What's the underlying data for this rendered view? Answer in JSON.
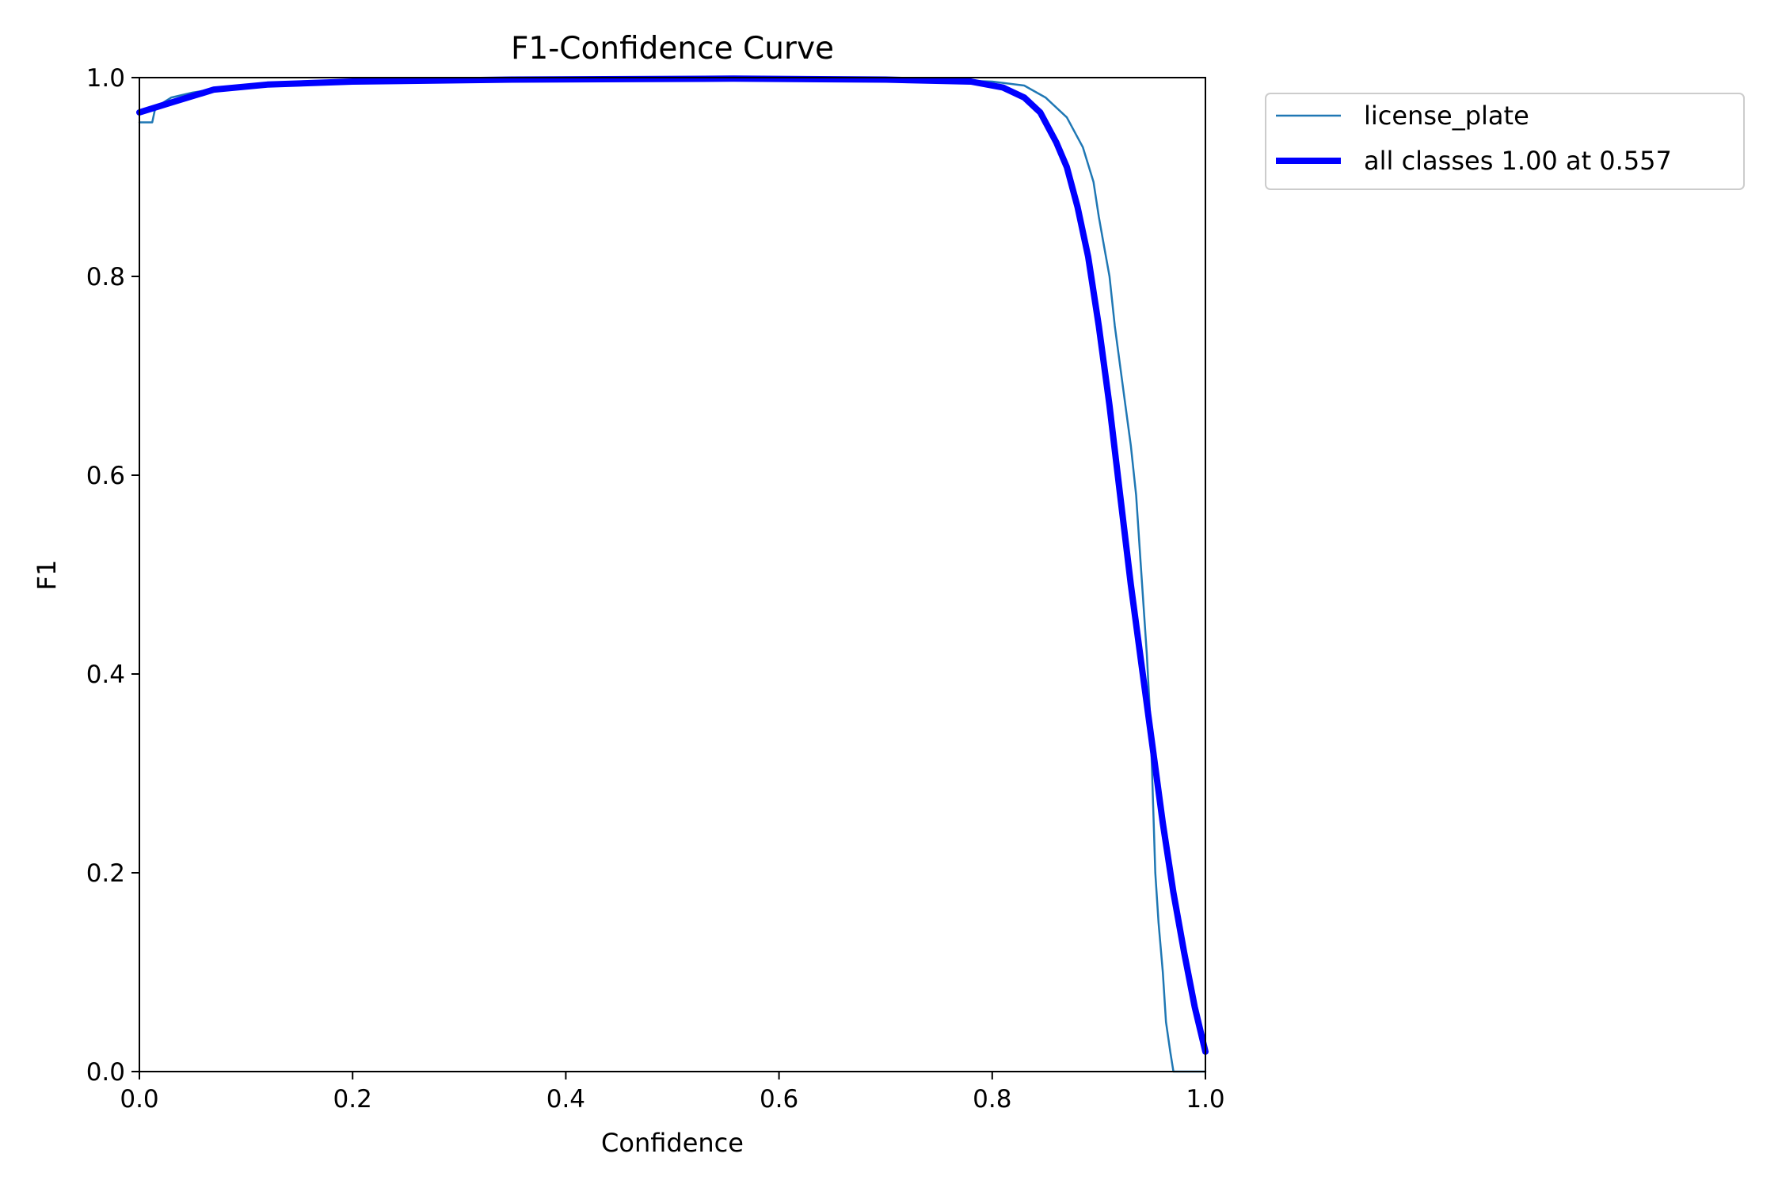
{
  "chart_data": {
    "type": "line",
    "title": "F1-Confidence Curve",
    "xlabel": "Confidence",
    "ylabel": "F1",
    "xlim": [
      0,
      1
    ],
    "ylim": [
      0,
      1
    ],
    "x_ticks": [
      "0.0",
      "0.2",
      "0.4",
      "0.6",
      "0.8",
      "1.0"
    ],
    "y_ticks": [
      "0.0",
      "0.2",
      "0.4",
      "0.6",
      "0.8",
      "1.0"
    ],
    "grid": false,
    "legend_position": "outside-top-right",
    "series": [
      {
        "name": "license_plate",
        "color": "#1f77b4",
        "style": "thin",
        "points": [
          [
            0.0,
            0.955
          ],
          [
            0.012,
            0.955
          ],
          [
            0.015,
            0.97
          ],
          [
            0.03,
            0.98
          ],
          [
            0.05,
            0.985
          ],
          [
            0.08,
            0.99
          ],
          [
            0.15,
            0.995
          ],
          [
            0.3,
            0.998
          ],
          [
            0.55,
            0.999
          ],
          [
            0.75,
            0.998
          ],
          [
            0.8,
            0.996
          ],
          [
            0.83,
            0.992
          ],
          [
            0.85,
            0.98
          ],
          [
            0.87,
            0.96
          ],
          [
            0.885,
            0.93
          ],
          [
            0.895,
            0.895
          ],
          [
            0.9,
            0.86
          ],
          [
            0.905,
            0.83
          ],
          [
            0.91,
            0.8
          ],
          [
            0.915,
            0.75
          ],
          [
            0.92,
            0.71
          ],
          [
            0.925,
            0.67
          ],
          [
            0.93,
            0.63
          ],
          [
            0.935,
            0.58
          ],
          [
            0.94,
            0.5
          ],
          [
            0.945,
            0.42
          ],
          [
            0.948,
            0.36
          ],
          [
            0.95,
            0.3
          ],
          [
            0.953,
            0.2
          ],
          [
            0.956,
            0.15
          ],
          [
            0.96,
            0.1
          ],
          [
            0.963,
            0.05
          ],
          [
            0.967,
            0.02
          ],
          [
            0.97,
            0.0
          ],
          [
            1.0,
            0.0
          ]
        ]
      },
      {
        "name": "all classes 1.00 at 0.557",
        "color": "#0000ff",
        "style": "thick",
        "points": [
          [
            0.0,
            0.965
          ],
          [
            0.03,
            0.975
          ],
          [
            0.07,
            0.988
          ],
          [
            0.12,
            0.993
          ],
          [
            0.2,
            0.996
          ],
          [
            0.35,
            0.998
          ],
          [
            0.557,
            0.999
          ],
          [
            0.7,
            0.998
          ],
          [
            0.78,
            0.996
          ],
          [
            0.81,
            0.99
          ],
          [
            0.83,
            0.98
          ],
          [
            0.845,
            0.965
          ],
          [
            0.86,
            0.935
          ],
          [
            0.87,
            0.91
          ],
          [
            0.88,
            0.87
          ],
          [
            0.89,
            0.82
          ],
          [
            0.9,
            0.75
          ],
          [
            0.91,
            0.67
          ],
          [
            0.92,
            0.58
          ],
          [
            0.93,
            0.49
          ],
          [
            0.94,
            0.41
          ],
          [
            0.95,
            0.33
          ],
          [
            0.96,
            0.25
          ],
          [
            0.97,
            0.18
          ],
          [
            0.98,
            0.12
          ],
          [
            0.99,
            0.065
          ],
          [
            1.0,
            0.02
          ]
        ]
      }
    ]
  }
}
